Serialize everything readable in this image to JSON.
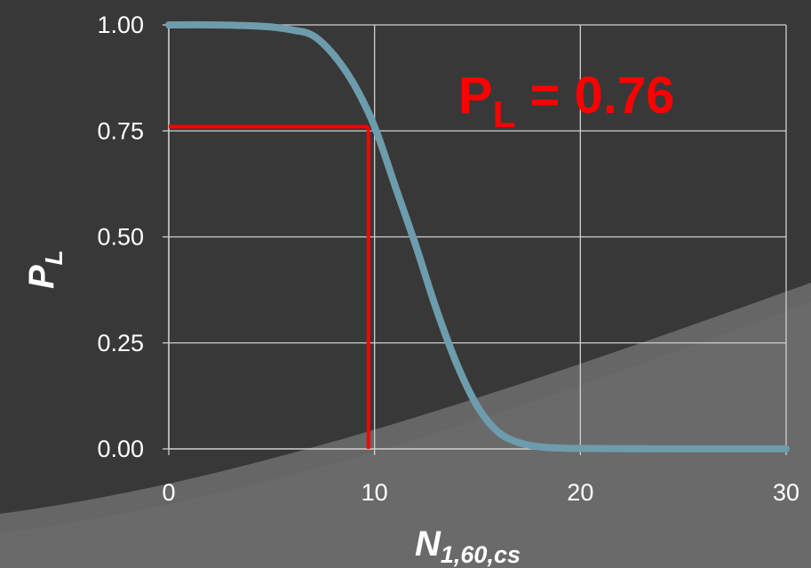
{
  "chart_data": {
    "type": "line",
    "xlabel": {
      "main": "N",
      "sub": "1,60,cs"
    },
    "ylabel": {
      "main": "P",
      "sub": "L"
    },
    "xlim": [
      0,
      30
    ],
    "ylim": [
      0,
      1
    ],
    "xticks": [
      "0",
      "10",
      "20",
      "30"
    ],
    "yticks": [
      "0.00",
      "0.25",
      "0.50",
      "0.75",
      "1.00"
    ],
    "grid": true,
    "series": [
      {
        "x": [
          0,
          2,
          4,
          5,
          6,
          7,
          8,
          9,
          10,
          11,
          12,
          13,
          14,
          15,
          16,
          17,
          18,
          19,
          20,
          25,
          30
        ],
        "y": [
          1.0,
          1.0,
          0.998,
          0.995,
          0.988,
          0.975,
          0.93,
          0.86,
          0.76,
          0.62,
          0.48,
          0.33,
          0.2,
          0.1,
          0.04,
          0.015,
          0.005,
          0.002,
          0.001,
          0.0,
          0.0
        ],
        "color": "#6d9cad"
      }
    ],
    "marker_lines": {
      "x": 9.7,
      "y": 0.76,
      "color": "#ff0000"
    },
    "annotation": {
      "main": "P",
      "sub": "L",
      "rest": " = 0.76",
      "color": "#ff0000"
    }
  }
}
